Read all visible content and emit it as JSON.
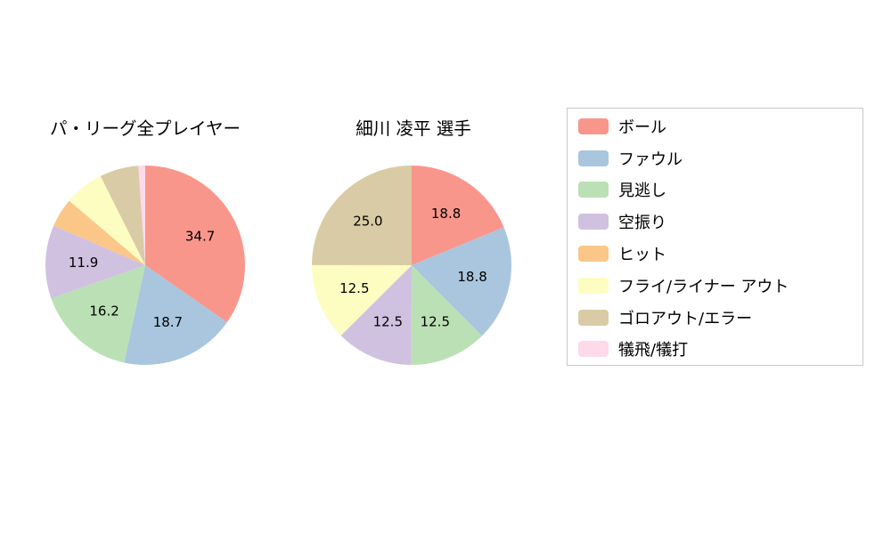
{
  "figure": {
    "background": "#ffffff"
  },
  "legend": {
    "items": [
      {
        "key": "ball",
        "label": "ボール",
        "color": "#f9968b"
      },
      {
        "key": "foul",
        "label": "ファウル",
        "color": "#a9c6de"
      },
      {
        "key": "called-strike",
        "label": "見逃し",
        "color": "#bce0b5"
      },
      {
        "key": "swinging-strike",
        "label": "空振り",
        "color": "#d0c1e1"
      },
      {
        "key": "hit",
        "label": "ヒット",
        "color": "#fbc788"
      },
      {
        "key": "fly-liner-out",
        "label": "フライ/ライナー アウト",
        "color": "#fdfdc2"
      },
      {
        "key": "groundout-error",
        "label": "ゴロアウト/エラー",
        "color": "#d9cba5"
      },
      {
        "key": "sacrifice",
        "label": "犠飛/犠打",
        "color": "#fcd9eb"
      }
    ]
  },
  "chart_data": [
    {
      "type": "pie",
      "title": "パ・リーグ全プレイヤー",
      "start_angle": "top",
      "direction": "clockwise",
      "slices": [
        {
          "key": "ball",
          "label": "ボール",
          "value": 34.7,
          "text": "34.7",
          "color": "#f9968b"
        },
        {
          "key": "foul",
          "label": "ファウル",
          "value": 18.7,
          "text": "18.7",
          "color": "#a9c6de"
        },
        {
          "key": "called-strike",
          "label": "見逃し",
          "value": 16.2,
          "text": "16.2",
          "color": "#bce0b5"
        },
        {
          "key": "swinging-strike",
          "label": "空振り",
          "value": 11.9,
          "text": "11.9",
          "color": "#d0c1e1"
        },
        {
          "key": "hit",
          "label": "ヒット",
          "value": 4.7,
          "text": "",
          "color": "#fbc788"
        },
        {
          "key": "fly-liner-out",
          "label": "フライ/ライナー アウト",
          "value": 6.4,
          "text": "",
          "color": "#fdfdc2"
        },
        {
          "key": "groundout-error",
          "label": "ゴロアウト/エラー",
          "value": 6.3,
          "text": "",
          "color": "#d9cba5"
        },
        {
          "key": "sacrifice",
          "label": "犠飛/犠打",
          "value": 1.1,
          "text": "",
          "color": "#fcd9eb"
        }
      ]
    },
    {
      "type": "pie",
      "title": "細川 凌平  選手",
      "start_angle": "top",
      "direction": "clockwise",
      "slices": [
        {
          "key": "ball",
          "label": "ボール",
          "value": 18.8,
          "text": "18.8",
          "color": "#f9968b"
        },
        {
          "key": "foul",
          "label": "ファウル",
          "value": 18.8,
          "text": "18.8",
          "color": "#a9c6de"
        },
        {
          "key": "called-strike",
          "label": "見逃し",
          "value": 12.5,
          "text": "12.5",
          "color": "#bce0b5"
        },
        {
          "key": "swinging-strike",
          "label": "空振り",
          "value": 12.5,
          "text": "12.5",
          "color": "#d0c1e1"
        },
        {
          "key": "fly-liner-out",
          "label": "フライ/ライナー アウト",
          "value": 12.5,
          "text": "12.5",
          "color": "#fdfdc2"
        },
        {
          "key": "groundout-error",
          "label": "ゴロアウト/エラー",
          "value": 25.0,
          "text": "25.0",
          "color": "#d9cba5"
        }
      ]
    }
  ]
}
